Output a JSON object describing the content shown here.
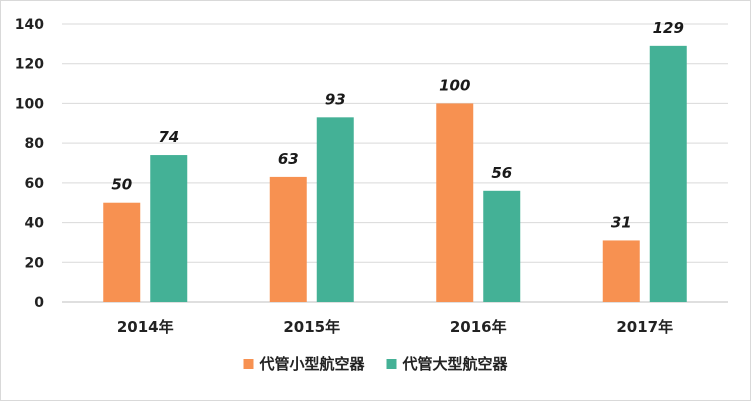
{
  "chart_data": {
    "type": "bar",
    "categories": [
      "2014年",
      "2015年",
      "2016年",
      "2017年"
    ],
    "series": [
      {
        "name": "代管小型航空器",
        "values": [
          50,
          63,
          100,
          31
        ],
        "color": "#f79151"
      },
      {
        "name": "代管大型航空器",
        "values": [
          74,
          93,
          56,
          129
        ],
        "color": "#44b196"
      }
    ],
    "ylim": [
      0,
      140
    ],
    "yticks": [
      0,
      20,
      40,
      60,
      80,
      100,
      120,
      140
    ],
    "grid": true,
    "legend_position": "bottom",
    "data_labels": true,
    "title": "",
    "xlabel": "",
    "ylabel": ""
  }
}
